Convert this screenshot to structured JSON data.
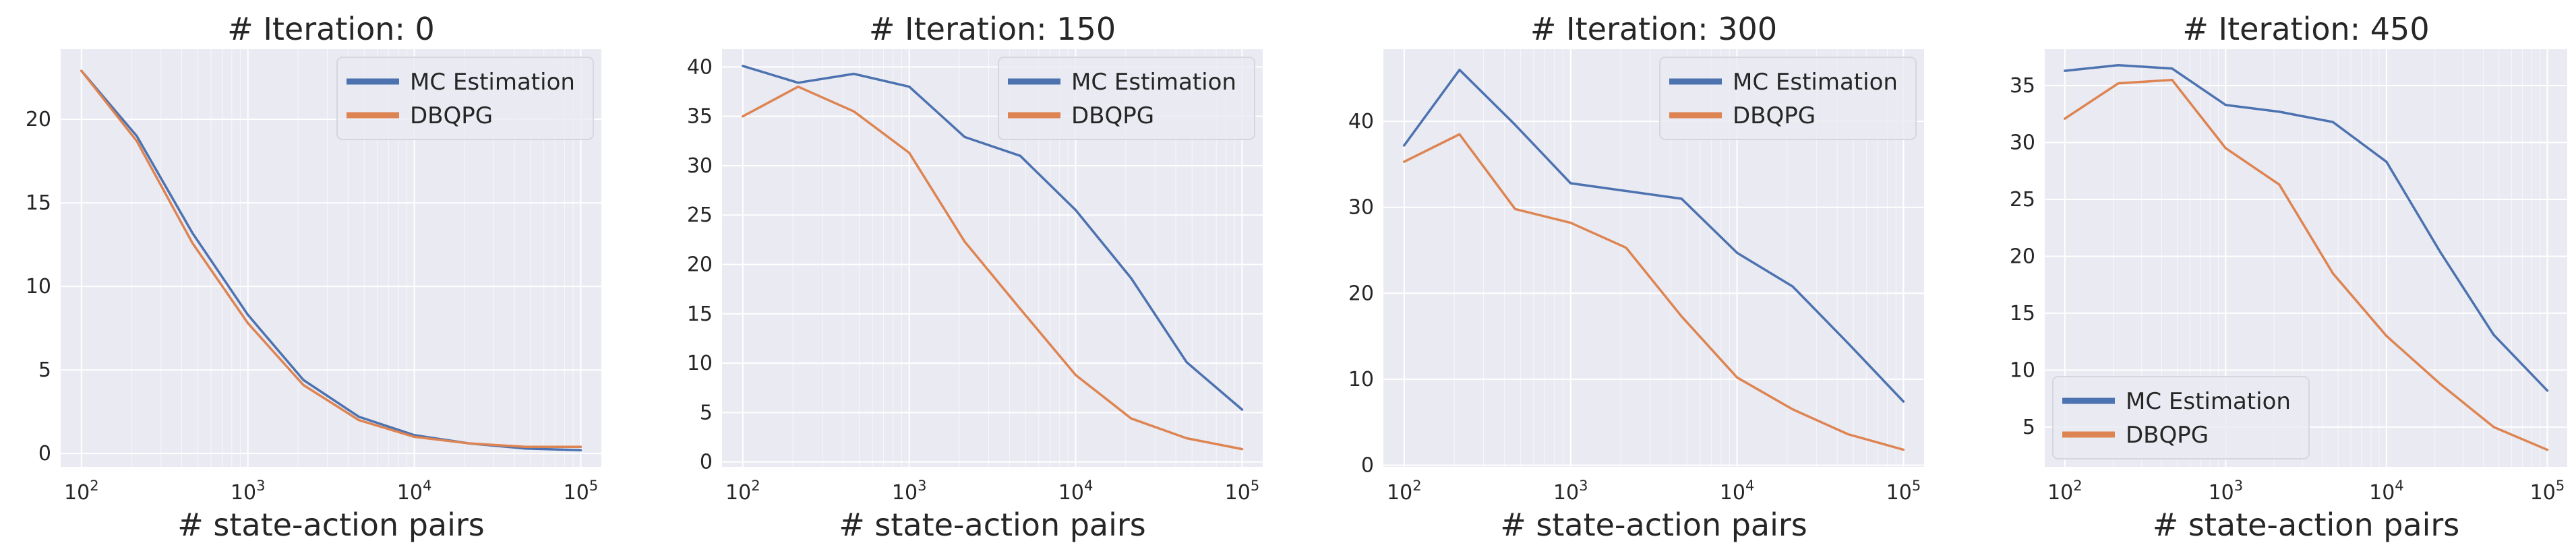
{
  "colors": {
    "mc": "#4c72b0",
    "dbqpg": "#dd8452",
    "panel_bg": "#eaeaf2",
    "grid": "#ffffff"
  },
  "chart_data": [
    {
      "type": "line",
      "title": "# Iteration: 0",
      "xlabel": "# state-action pairs",
      "ylabel": "",
      "xscale": "log",
      "xlim": [
        75,
        133000
      ],
      "ylim": [
        -0.8,
        24.2
      ],
      "yticks": [
        0,
        5,
        10,
        15,
        20
      ],
      "xticks": [
        {
          "value": 100,
          "base": "10",
          "exp": "2"
        },
        {
          "value": 1000,
          "base": "10",
          "exp": "3"
        },
        {
          "value": 10000,
          "base": "10",
          "exp": "4"
        },
        {
          "value": 100000,
          "base": "10",
          "exp": "5"
        }
      ],
      "x": [
        100,
        215,
        464,
        1000,
        2154,
        4642,
        10000,
        21544,
        46416,
        100000
      ],
      "series": [
        {
          "name": "MC Estimation",
          "values": [
            22.9,
            19.0,
            13.2,
            8.3,
            4.4,
            2.2,
            1.1,
            0.6,
            0.3,
            0.2
          ]
        },
        {
          "name": "DBQPG",
          "values": [
            22.9,
            18.7,
            12.6,
            7.8,
            4.1,
            2.0,
            1.0,
            0.6,
            0.4,
            0.4
          ]
        }
      ],
      "legend": "top-right"
    },
    {
      "type": "line",
      "title": "# Iteration: 150",
      "xlabel": "# state-action pairs",
      "ylabel": "",
      "xscale": "log",
      "xlim": [
        75,
        133000
      ],
      "ylim": [
        -0.5,
        41.8
      ],
      "yticks": [
        0,
        5,
        10,
        15,
        20,
        25,
        30,
        35,
        40
      ],
      "xticks": [
        {
          "value": 100,
          "base": "10",
          "exp": "2"
        },
        {
          "value": 1000,
          "base": "10",
          "exp": "3"
        },
        {
          "value": 10000,
          "base": "10",
          "exp": "4"
        },
        {
          "value": 100000,
          "base": "10",
          "exp": "5"
        }
      ],
      "x": [
        100,
        215,
        464,
        1000,
        2154,
        4642,
        10000,
        21544,
        46416,
        100000
      ],
      "series": [
        {
          "name": "MC Estimation",
          "values": [
            40.1,
            38.4,
            39.3,
            38.0,
            32.9,
            31.0,
            25.5,
            18.6,
            10.1,
            5.3
          ]
        },
        {
          "name": "DBQPG",
          "values": [
            35.0,
            38.0,
            35.5,
            31.3,
            22.3,
            15.5,
            8.8,
            4.4,
            2.4,
            1.3
          ]
        }
      ],
      "legend": "top-right"
    },
    {
      "type": "line",
      "title": "# Iteration: 300",
      "xlabel": "# state-action pairs",
      "ylabel": "",
      "xscale": "log",
      "xlim": [
        75,
        133000
      ],
      "ylim": [
        -0.2,
        48.4
      ],
      "yticks": [
        0,
        10,
        20,
        30,
        40
      ],
      "xticks": [
        {
          "value": 100,
          "base": "10",
          "exp": "2"
        },
        {
          "value": 1000,
          "base": "10",
          "exp": "3"
        },
        {
          "value": 10000,
          "base": "10",
          "exp": "4"
        },
        {
          "value": 100000,
          "base": "10",
          "exp": "5"
        }
      ],
      "x": [
        100,
        215,
        464,
        1000,
        2154,
        4642,
        10000,
        21544,
        46416,
        100000
      ],
      "series": [
        {
          "name": "MC Estimation",
          "values": [
            37.2,
            46.0,
            39.6,
            32.8,
            31.9,
            31.0,
            24.7,
            20.8,
            14.2,
            7.4
          ]
        },
        {
          "name": "DBQPG",
          "values": [
            35.3,
            38.5,
            29.8,
            28.2,
            25.3,
            17.3,
            10.2,
            6.5,
            3.6,
            1.8
          ]
        }
      ],
      "legend": "top-right"
    },
    {
      "type": "line",
      "title": "# Iteration: 450",
      "xlabel": "# state-action pairs",
      "ylabel": "",
      "xscale": "log",
      "xlim": [
        75,
        133000
      ],
      "ylim": [
        1.5,
        38.2
      ],
      "yticks": [
        5,
        10,
        15,
        20,
        25,
        30,
        35
      ],
      "xticks": [
        {
          "value": 100,
          "base": "10",
          "exp": "2"
        },
        {
          "value": 1000,
          "base": "10",
          "exp": "3"
        },
        {
          "value": 10000,
          "base": "10",
          "exp": "4"
        },
        {
          "value": 100000,
          "base": "10",
          "exp": "5"
        }
      ],
      "x": [
        100,
        215,
        464,
        1000,
        2154,
        4642,
        10000,
        21544,
        46416,
        100000
      ],
      "series": [
        {
          "name": "MC Estimation",
          "values": [
            36.3,
            36.8,
            36.5,
            33.3,
            32.7,
            31.8,
            28.3,
            20.4,
            13.1,
            8.2
          ]
        },
        {
          "name": "DBQPG",
          "values": [
            32.1,
            35.2,
            35.5,
            29.5,
            26.3,
            18.5,
            13.0,
            8.8,
            5.0,
            3.0
          ]
        }
      ],
      "legend": "bottom-left"
    }
  ]
}
